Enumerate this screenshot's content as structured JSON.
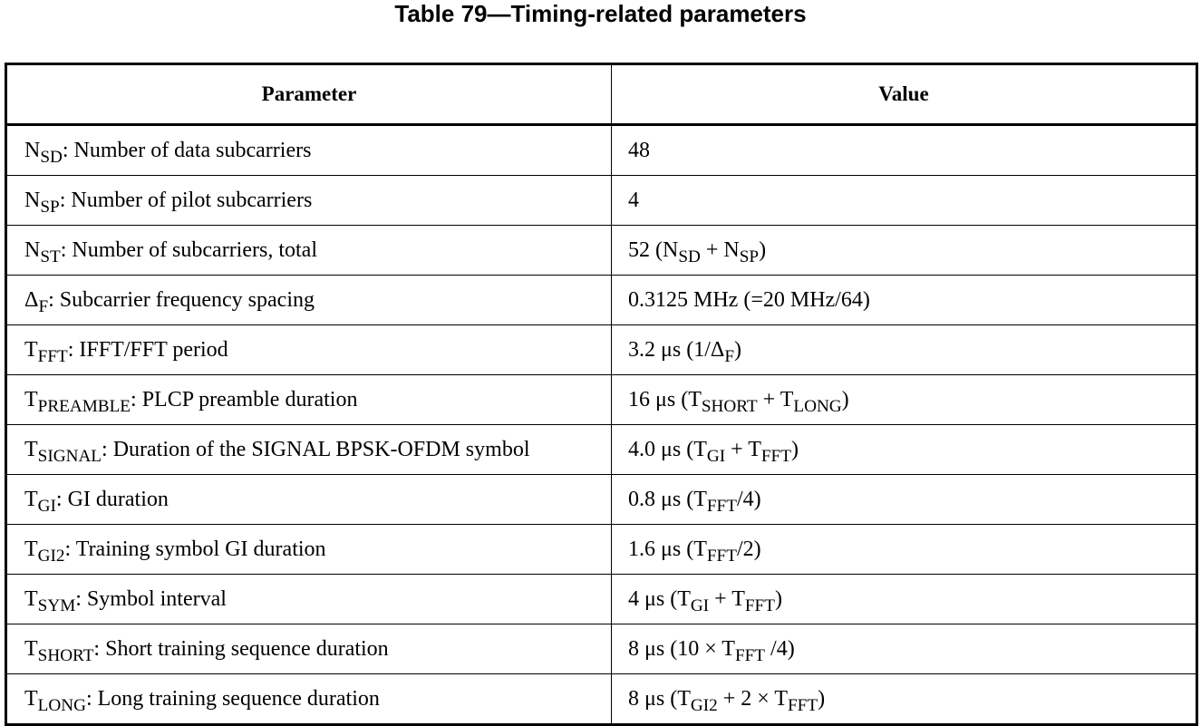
{
  "caption": "Table 79—Timing-related parameters",
  "columns": {
    "parameter": "Parameter",
    "value": "Value"
  },
  "rows": [
    {
      "param": [
        {
          "t": "N"
        },
        {
          "t": "SD",
          "sub": true
        },
        {
          "t": ": Number of data subcarriers"
        }
      ],
      "value": [
        {
          "t": "48"
        }
      ]
    },
    {
      "param": [
        {
          "t": "N"
        },
        {
          "t": "SP",
          "sub": true
        },
        {
          "t": ": Number of pilot subcarriers"
        }
      ],
      "value": [
        {
          "t": "4"
        }
      ]
    },
    {
      "param": [
        {
          "t": "N"
        },
        {
          "t": "ST",
          "sub": true
        },
        {
          "t": ": Number of subcarriers, total"
        }
      ],
      "value": [
        {
          "t": "52 (N"
        },
        {
          "t": "SD",
          "sub": true
        },
        {
          "t": " + N"
        },
        {
          "t": "SP",
          "sub": true
        },
        {
          "t": ")"
        }
      ]
    },
    {
      "param": [
        {
          "t": "Δ"
        },
        {
          "t": "F",
          "sub": true
        },
        {
          "t": ": Subcarrier frequency spacing"
        }
      ],
      "value": [
        {
          "t": "0.3125 MHz (=20 MHz/64)"
        }
      ]
    },
    {
      "param": [
        {
          "t": "T"
        },
        {
          "t": "FFT",
          "sub": true
        },
        {
          "t": ": IFFT/FFT period"
        }
      ],
      "value": [
        {
          "t": "3.2 μs (1/Δ"
        },
        {
          "t": "F",
          "sub": true
        },
        {
          "t": ")"
        }
      ]
    },
    {
      "param": [
        {
          "t": "T"
        },
        {
          "t": "PREAMBLE",
          "sub": true
        },
        {
          "t": ": PLCP preamble duration"
        }
      ],
      "value": [
        {
          "t": "16 μs (T"
        },
        {
          "t": "SHORT",
          "sub": true
        },
        {
          "t": " + T"
        },
        {
          "t": "LONG",
          "sub": true
        },
        {
          "t": ")"
        }
      ]
    },
    {
      "param": [
        {
          "t": "T"
        },
        {
          "t": "SIGNAL",
          "sub": true
        },
        {
          "t": ": Duration of the SIGNAL BPSK-OFDM symbol"
        }
      ],
      "value": [
        {
          "t": "4.0 μs (T"
        },
        {
          "t": "GI",
          "sub": true
        },
        {
          "t": " + T"
        },
        {
          "t": "FFT",
          "sub": true
        },
        {
          "t": ")"
        }
      ]
    },
    {
      "param": [
        {
          "t": "T"
        },
        {
          "t": "GI",
          "sub": true
        },
        {
          "t": ": GI duration"
        }
      ],
      "value": [
        {
          "t": "0.8 μs (T"
        },
        {
          "t": "FFT",
          "sub": true
        },
        {
          "t": "/4)"
        }
      ]
    },
    {
      "param": [
        {
          "t": "T"
        },
        {
          "t": "GI2",
          "sub": true
        },
        {
          "t": ": Training symbol GI duration"
        }
      ],
      "value": [
        {
          "t": "1.6 μs (T"
        },
        {
          "t": "FFT",
          "sub": true
        },
        {
          "t": "/2)"
        }
      ]
    },
    {
      "param": [
        {
          "t": "T"
        },
        {
          "t": "SYM",
          "sub": true
        },
        {
          "t": ": Symbol interval"
        }
      ],
      "value": [
        {
          "t": "4 μs (T"
        },
        {
          "t": "GI",
          "sub": true
        },
        {
          "t": " + T"
        },
        {
          "t": "FFT",
          "sub": true
        },
        {
          "t": ")"
        }
      ]
    },
    {
      "param": [
        {
          "t": "T"
        },
        {
          "t": "SHORT",
          "sub": true
        },
        {
          "t": ": Short training sequence duration"
        }
      ],
      "value": [
        {
          "t": "8 μs (10 × T"
        },
        {
          "t": "FFT",
          "sub": true
        },
        {
          "t": " /4)"
        }
      ]
    },
    {
      "param": [
        {
          "t": "T"
        },
        {
          "t": "LONG",
          "sub": true
        },
        {
          "t": ": Long training sequence duration"
        }
      ],
      "value": [
        {
          "t": "8 μs (T"
        },
        {
          "t": "GI2",
          "sub": true
        },
        {
          "t": " + 2 × T"
        },
        {
          "t": "FFT",
          "sub": true
        },
        {
          "t": ")"
        }
      ]
    }
  ]
}
